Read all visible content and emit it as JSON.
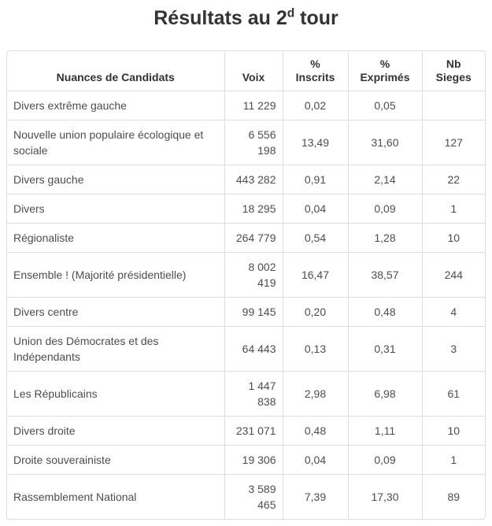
{
  "title": {
    "text_before_sup": "Résultats au 2",
    "sup": "d",
    "text_after_sup": " tour"
  },
  "colors": {
    "border": "#dddddd",
    "title_text": "#333333",
    "header_text": "#333333",
    "body_text": "#4d4d4d",
    "background": "#ffffff"
  },
  "table": {
    "headers": [
      {
        "line1": "Nuances de Candidats"
      },
      {
        "line1": "Voix"
      },
      {
        "line1": "%",
        "line2": "Inscrits"
      },
      {
        "line1": "%",
        "line2": "Exprimés"
      },
      {
        "line1": "Nb",
        "line2": "Sieges"
      }
    ],
    "rows": [
      {
        "nuance": "Divers extrême gauche",
        "voix": "11 229",
        "pct_inscrits": "0,02",
        "pct_exprimes": "0,05",
        "nb_sieges": ""
      },
      {
        "nuance": "Nouvelle union populaire écologique et sociale",
        "voix": "6 556 198",
        "pct_inscrits": "13,49",
        "pct_exprimes": "31,60",
        "nb_sieges": "127"
      },
      {
        "nuance": "Divers gauche",
        "voix": "443 282",
        "pct_inscrits": "0,91",
        "pct_exprimes": "2,14",
        "nb_sieges": "22"
      },
      {
        "nuance": "Divers",
        "voix": "18 295",
        "pct_inscrits": "0,04",
        "pct_exprimes": "0,09",
        "nb_sieges": "1"
      },
      {
        "nuance": "Régionaliste",
        "voix": "264 779",
        "pct_inscrits": "0,54",
        "pct_exprimes": "1,28",
        "nb_sieges": "10"
      },
      {
        "nuance": "Ensemble ! (Majorité présidentielle)",
        "voix": "8 002 419",
        "pct_inscrits": "16,47",
        "pct_exprimes": "38,57",
        "nb_sieges": "244"
      },
      {
        "nuance": "Divers centre",
        "voix": "99 145",
        "pct_inscrits": "0,20",
        "pct_exprimes": "0,48",
        "nb_sieges": "4"
      },
      {
        "nuance": "Union des Démocrates et des Indépendants",
        "voix": "64 443",
        "pct_inscrits": "0,13",
        "pct_exprimes": "0,31",
        "nb_sieges": "3"
      },
      {
        "nuance": "Les Républicains",
        "voix": "1 447 838",
        "pct_inscrits": "2,98",
        "pct_exprimes": "6,98",
        "nb_sieges": "61"
      },
      {
        "nuance": "Divers droite",
        "voix": "231 071",
        "pct_inscrits": "0,48",
        "pct_exprimes": "1,11",
        "nb_sieges": "10"
      },
      {
        "nuance": "Droite souverainiste",
        "voix": "19 306",
        "pct_inscrits": "0,04",
        "pct_exprimes": "0,09",
        "nb_sieges": "1"
      },
      {
        "nuance": "Rassemblement National",
        "voix": "3 589 465",
        "pct_inscrits": "7,39",
        "pct_exprimes": "17,30",
        "nb_sieges": "89"
      }
    ]
  }
}
